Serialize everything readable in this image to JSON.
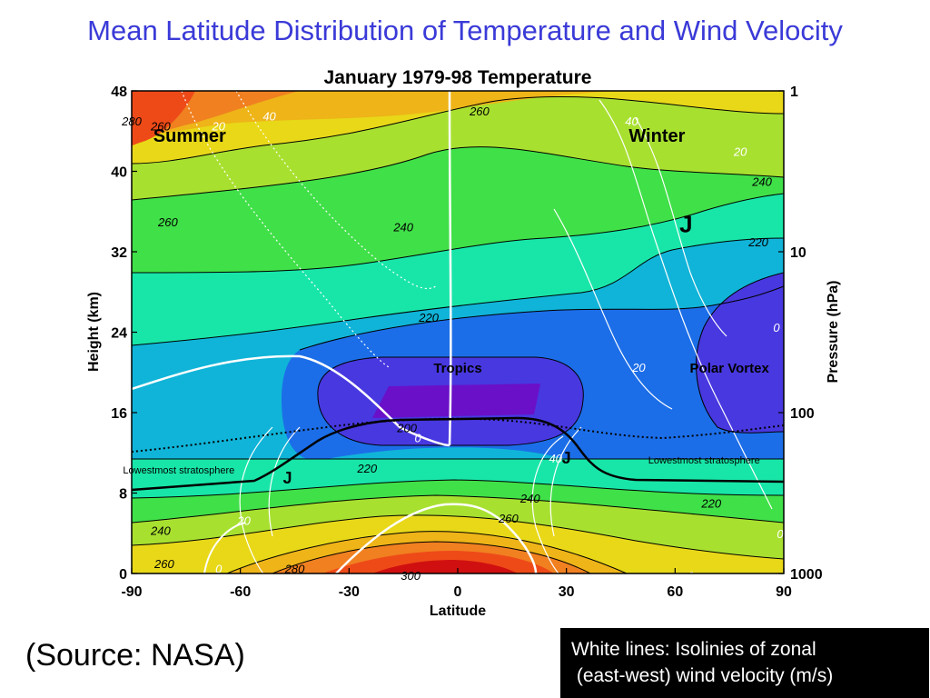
{
  "slide": {
    "title": "Mean Latitude Distribution of Temperature and Wind Velocity",
    "source": "(Source: NASA)",
    "note_line1": "White lines: Isolinies of zonal",
    "note_line2": " (east-west) wind velocity (m/s)"
  },
  "chart_data": {
    "type": "heatmap",
    "title": "January 1979-98 Temperature",
    "xlabel": "Latitude",
    "ylabel": "Height (km)",
    "y2label": "Pressure (hPa)",
    "xlim": [
      -90,
      90
    ],
    "ylim": [
      0,
      48
    ],
    "x_ticks": [
      -90,
      -60,
      -30,
      0,
      30,
      60,
      90
    ],
    "y_ticks": [
      0,
      8,
      16,
      24,
      32,
      40,
      48
    ],
    "pressure_ticks": [
      {
        "label": "1",
        "height_km": 48
      },
      {
        "label": "10",
        "height_km": 32
      },
      {
        "label": "100",
        "height_km": 16
      },
      {
        "label": "1000",
        "height_km": 0
      }
    ],
    "temperature_contour_labels": [
      {
        "text": "260",
        "lat": 6,
        "km": 46
      },
      {
        "text": "260",
        "lat": -82,
        "km": 44.5
      },
      {
        "text": "240",
        "lat": 84,
        "km": 39
      },
      {
        "text": "260",
        "lat": -80,
        "km": 35
      },
      {
        "text": "240",
        "lat": -15,
        "km": 34.5
      },
      {
        "text": "220",
        "lat": 83,
        "km": 33
      },
      {
        "text": "220",
        "lat": -8,
        "km": 25.5
      },
      {
        "text": "200",
        "lat": -14,
        "km": 14.5
      },
      {
        "text": "220",
        "lat": -25,
        "km": 10.5
      },
      {
        "text": "240",
        "lat": 20,
        "km": 7.5
      },
      {
        "text": "220",
        "lat": 70,
        "km": 7
      },
      {
        "text": "240",
        "lat": -82,
        "km": 4.3
      },
      {
        "text": "260",
        "lat": 14,
        "km": 5.5
      },
      {
        "text": "260",
        "lat": -81,
        "km": 1
      },
      {
        "text": "280",
        "lat": -45,
        "km": 0.5
      },
      {
        "text": "300",
        "lat": -13,
        "km": -0.2
      },
      {
        "text": "280",
        "lat": -90,
        "km": 45
      }
    ],
    "wind_contour_labels": [
      {
        "text": "20",
        "lat": -66,
        "km": 44.5
      },
      {
        "text": "40",
        "lat": -52,
        "km": 45.5
      },
      {
        "text": "40",
        "lat": 48,
        "km": 45
      },
      {
        "text": "20",
        "lat": 78,
        "km": 42
      },
      {
        "text": "20",
        "lat": 50,
        "km": 20.5
      },
      {
        "text": "40",
        "lat": 27,
        "km": 11.5
      },
      {
        "text": "0",
        "lat": -11,
        "km": 13.5
      },
      {
        "text": "20",
        "lat": -59,
        "km": 5.3
      },
      {
        "text": "0",
        "lat": -66,
        "km": 0.5
      },
      {
        "text": "0",
        "lat": 88,
        "km": 24.5
      },
      {
        "text": "0",
        "lat": 89,
        "km": 4
      }
    ],
    "region_labels": [
      {
        "text": "Summer",
        "lat": -74,
        "km": 43.5,
        "size": "large"
      },
      {
        "text": "Winter",
        "lat": 55,
        "km": 43.5,
        "size": "large"
      },
      {
        "text": "J",
        "lat": 63,
        "km": 34.5,
        "size": "jet"
      },
      {
        "text": "Tropics",
        "lat": 0,
        "km": 20.5,
        "size": "medium"
      },
      {
        "text": "Polar Vortex",
        "lat": 75,
        "km": 20.5,
        "size": "medium"
      },
      {
        "text": "Lowestmost stratosphere",
        "lat": -77,
        "km": 10.5,
        "size": "small"
      },
      {
        "text": "Lowestmost stratosphere",
        "lat": 68,
        "km": 11.5,
        "size": "small"
      },
      {
        "text": "J",
        "lat": -47,
        "km": 9.5,
        "size": "jet-small"
      },
      {
        "text": "J",
        "lat": 30,
        "km": 11.5,
        "size": "jet-small"
      }
    ],
    "colors": {
      "t300": "#d01010",
      "t290": "#ee4a18",
      "t280": "#f08020",
      "t270": "#eeb418",
      "t260": "#e8d818",
      "t250": "#a8e030",
      "t240": "#40e048",
      "t230": "#18e6a8",
      "t220": "#10b4d8",
      "t210": "#1c6ee8",
      "t200": "#4838e0",
      "t190": "#6a10c8",
      "wind": "#ffffff",
      "tropopause": "#000000",
      "title": "#3a3ad8"
    }
  }
}
